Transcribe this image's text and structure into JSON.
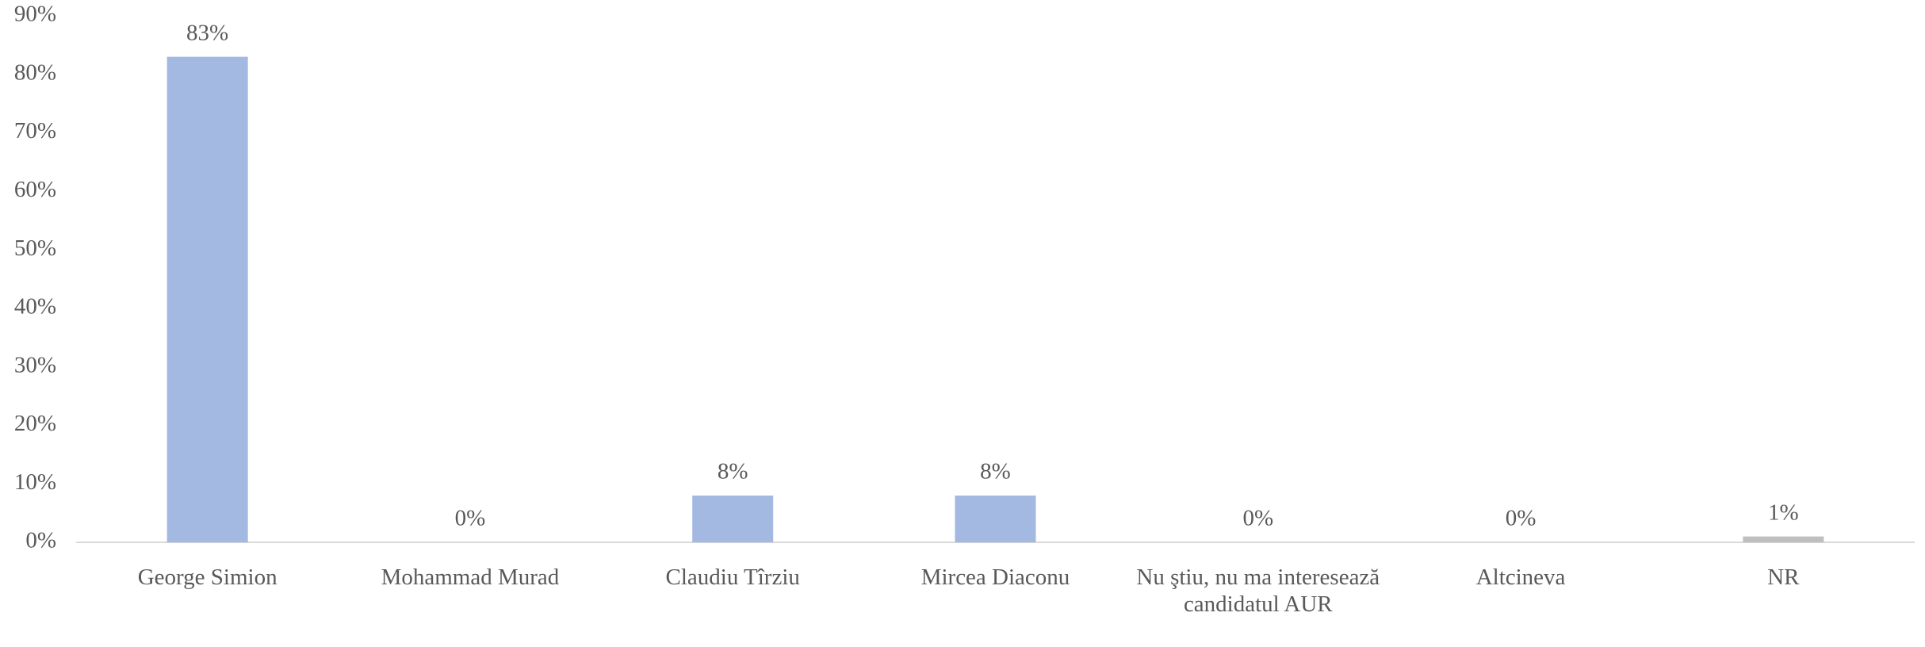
{
  "chart_data": {
    "type": "bar",
    "categories": [
      "George Simion",
      "Mohammad Murad",
      "Claudiu Tîrziu",
      "Mircea Diaconu",
      "Nu ştiu, nu ma interesează candidatul AUR",
      "Altcineva",
      "NR"
    ],
    "values": [
      83,
      0,
      8,
      8,
      0,
      0,
      1
    ],
    "value_labels": [
      "83%",
      "0%",
      "8%",
      "8%",
      "0%",
      "0%",
      "1%"
    ],
    "colors": [
      "#a3b9e2",
      "#a3b9e2",
      "#a3b9e2",
      "#a3b9e2",
      "#a3b9e2",
      "#a3b9e2",
      "#bfbfbf"
    ],
    "ylim": [
      0,
      90
    ],
    "yticks": [
      {
        "value": 0,
        "label": "0%"
      },
      {
        "value": 10,
        "label": "10%"
      },
      {
        "value": 20,
        "label": "20%"
      },
      {
        "value": 30,
        "label": "30%"
      },
      {
        "value": 40,
        "label": "40%"
      },
      {
        "value": 50,
        "label": "50%"
      },
      {
        "value": 60,
        "label": "60%"
      },
      {
        "value": 70,
        "label": "70%"
      },
      {
        "value": 80,
        "label": "80%"
      },
      {
        "value": 90,
        "label": "90%"
      }
    ],
    "grid": false
  }
}
